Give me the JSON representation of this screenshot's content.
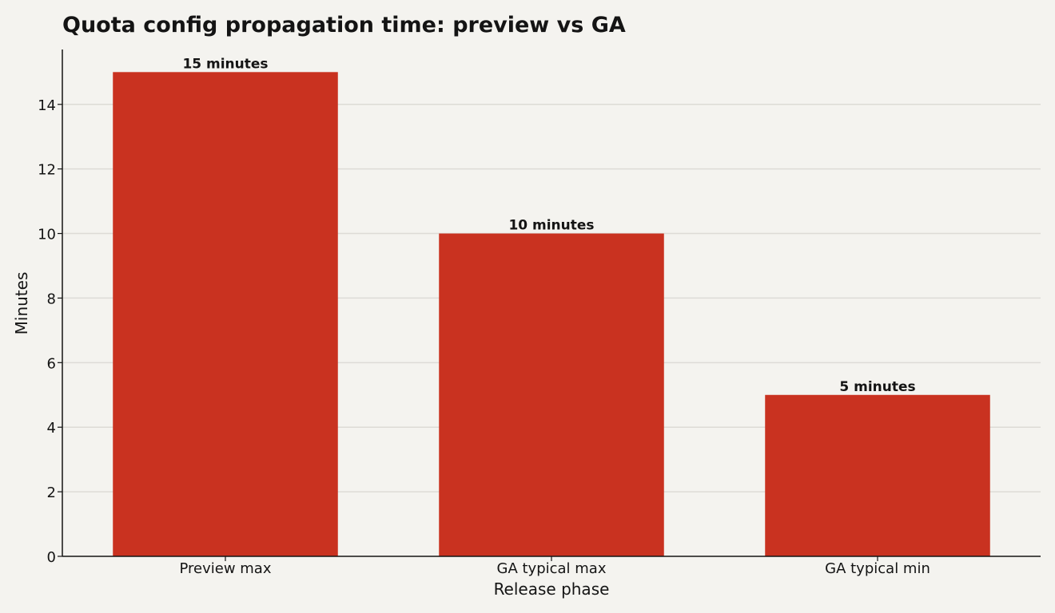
{
  "chart_data": {
    "type": "bar",
    "title": "Quota config propagation time: preview vs GA",
    "xlabel": "Release phase",
    "ylabel": "Minutes",
    "categories": [
      "Preview max",
      "GA typical max",
      "GA typical min"
    ],
    "values": [
      15,
      10,
      5
    ],
    "data_labels": [
      "15 minutes",
      "10 minutes",
      "5 minutes"
    ],
    "ylim": [
      0,
      15.7
    ],
    "yticks": [
      0,
      2,
      4,
      6,
      8,
      10,
      12,
      14
    ],
    "grid": true,
    "legend": "none",
    "colors": {
      "bar": "#c93220",
      "background": "#f4f3ef",
      "grid": "#dddbd6",
      "axis": "#141414",
      "text": "#141414"
    }
  }
}
